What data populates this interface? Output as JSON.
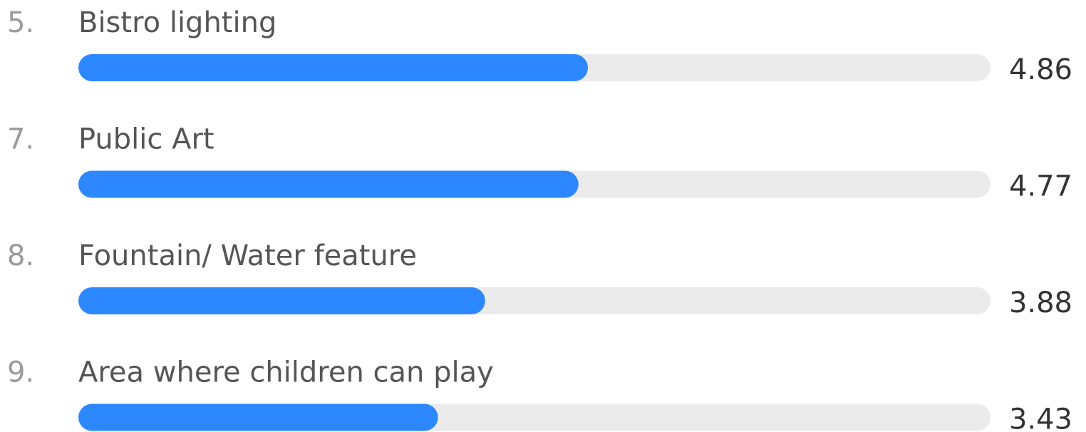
{
  "chart_data": {
    "type": "bar",
    "orientation": "horizontal",
    "ranks": [
      "5.",
      "7.",
      "8.",
      "9."
    ],
    "categories": [
      "Bistro lighting",
      "Public Art",
      "Fountain/ Water feature",
      "Area where children can play"
    ],
    "values": [
      4.86,
      4.77,
      3.88,
      3.43
    ],
    "color": "#2d88ff",
    "track_color": "#ebebeb",
    "xlim": [
      0,
      8.7
    ]
  }
}
